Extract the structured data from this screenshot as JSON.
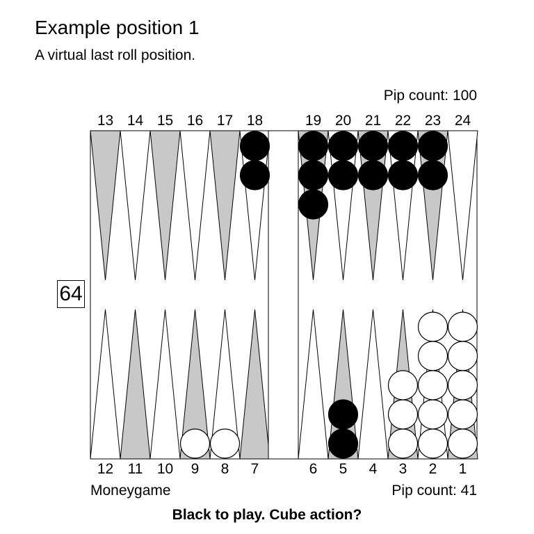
{
  "header": {
    "title": "Example position 1",
    "subtitle": "A virtual last roll position."
  },
  "board": {
    "top_point_labels": [
      "13",
      "14",
      "15",
      "16",
      "17",
      "18",
      "19",
      "20",
      "21",
      "22",
      "23",
      "24"
    ],
    "bottom_point_labels": [
      "12",
      "11",
      "10",
      "9",
      "8",
      "7",
      "6",
      "5",
      "4",
      "3",
      "2",
      "1"
    ],
    "black_checkers": {
      "18": 2,
      "19": 3,
      "20": 2,
      "21": 2,
      "22": 2,
      "23": 2,
      "5": 2
    },
    "white_checkers": {
      "9": 1,
      "8": 1,
      "3": 3,
      "2": 5,
      "1": 5
    },
    "colors": {
      "dark_point": "#c8c8c8",
      "light_point": "#ffffff",
      "black_checker": "#000000",
      "white_checker": "#ffffff"
    }
  },
  "cube": {
    "value": "64"
  },
  "pip": {
    "top": "Pip count: 100",
    "bottom": "Pip count: 41"
  },
  "footer": {
    "game_type": "Moneygame",
    "prompt": "Black to play. Cube action?"
  }
}
